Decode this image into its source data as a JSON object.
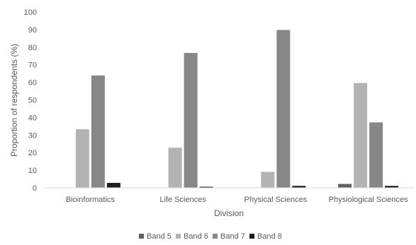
{
  "chart_data": {
    "type": "bar",
    "title": "",
    "xlabel": "Division",
    "ylabel": "Proportion of respondents (%)",
    "ylim": [
      0,
      100
    ],
    "yticks": [
      0,
      10,
      20,
      30,
      40,
      50,
      60,
      70,
      80,
      90,
      100
    ],
    "grid": false,
    "legend_position": "bottom",
    "categories": [
      "Bioinformatics",
      "Life Sciences",
      "Physical Sciences",
      "Physiological Sciences"
    ],
    "series": [
      {
        "name": "Band 5",
        "color": "#5f5f5f",
        "values": [
          0,
          0,
          0,
          2.2
        ]
      },
      {
        "name": "Band 6",
        "color": "#b3b3b3",
        "values": [
          33.3,
          22.8,
          9.1,
          59.6
        ]
      },
      {
        "name": "Band 7",
        "color": "#878787",
        "values": [
          63.9,
          76.7,
          89.8,
          37.2
        ]
      },
      {
        "name": "Band 8",
        "color": "#1f1f1f",
        "values": [
          2.8,
          0.6,
          1.1,
          1.1
        ]
      }
    ]
  }
}
